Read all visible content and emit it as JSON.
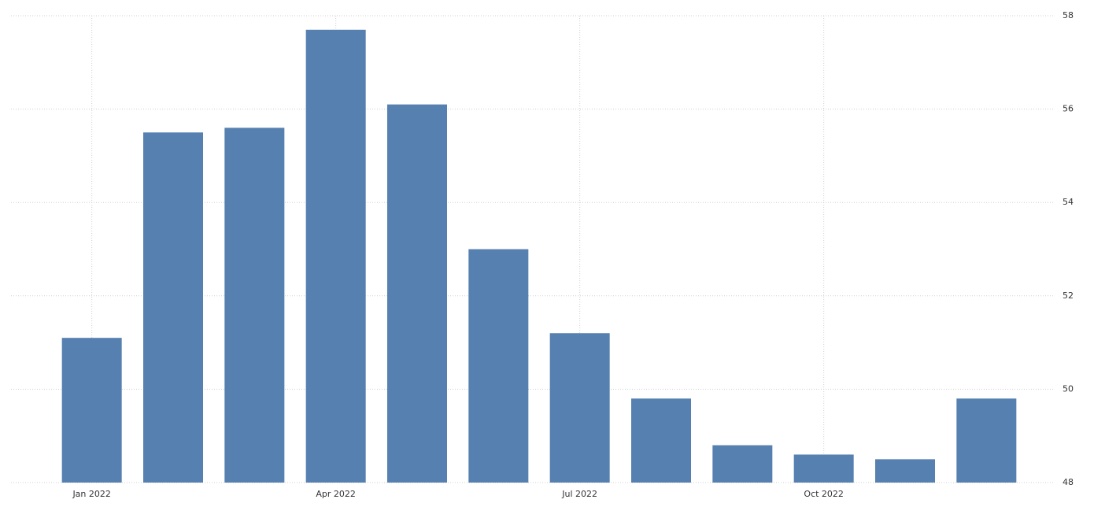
{
  "chart_data": {
    "type": "bar",
    "categories": [
      "Jan 2022",
      null,
      null,
      "Apr 2022",
      null,
      null,
      "Jul 2022",
      null,
      null,
      "Oct 2022",
      null,
      null
    ],
    "values": [
      51.1,
      55.5,
      55.6,
      57.7,
      56.1,
      53.0,
      51.2,
      49.8,
      48.8,
      48.6,
      48.5,
      49.8
    ],
    "color": "#5580b0",
    "ylim": [
      48,
      58
    ],
    "yticks": [
      48,
      50,
      52,
      54,
      56,
      58
    ],
    "grid": true
  }
}
